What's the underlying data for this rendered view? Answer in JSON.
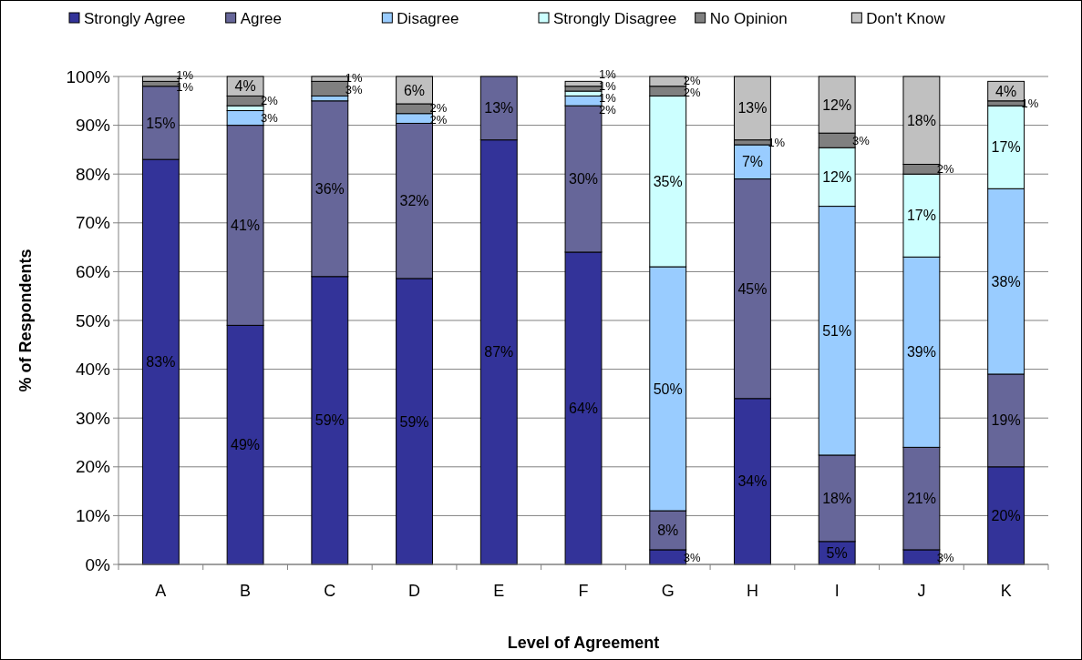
{
  "chart_data": {
    "type": "bar",
    "stacked": true,
    "xlabel": "Level of Agreement",
    "ylabel": "% of Respondents",
    "categories": [
      "A",
      "B",
      "C",
      "D",
      "E",
      "F",
      "G",
      "H",
      "I",
      "J",
      "K"
    ],
    "series": [
      {
        "name": "Strongly Agree",
        "color": "#333399",
        "values": [
          83,
          49,
          59,
          58.6,
          87,
          64,
          3,
          34,
          4.7,
          3,
          20
        ],
        "value_labels": [
          "83%",
          "49%",
          "59%",
          "59%",
          "87%",
          "64%",
          "3%",
          "34%",
          "5%",
          "3%",
          "20%"
        ]
      },
      {
        "name": "Agree",
        "color": "#666699",
        "values": [
          15,
          41,
          36,
          31.8,
          13,
          30,
          8,
          45,
          17.7,
          21,
          19
        ],
        "value_labels": [
          "15%",
          "41%",
          "36%",
          "32%",
          "13%",
          "30%",
          "8%",
          "45%",
          "18%",
          "21%",
          "19%"
        ]
      },
      {
        "name": "Disagree",
        "color": "#99ccff",
        "values": [
          0,
          3,
          1,
          2,
          0,
          2,
          50,
          7,
          51,
          39,
          38
        ],
        "value_labels": [
          null,
          "3%",
          null,
          "2%",
          null,
          "2%",
          "50%",
          "7%",
          "51%",
          "39%",
          "38%"
        ]
      },
      {
        "name": "Strongly Disagree",
        "color": "#ccffff",
        "values": [
          0,
          1,
          0,
          0,
          0,
          1,
          35,
          0,
          12,
          17,
          17
        ],
        "value_labels": [
          null,
          null,
          null,
          null,
          null,
          "1%",
          "35%",
          null,
          "12%",
          "17%",
          "17%"
        ]
      },
      {
        "name": "No Opinion",
        "color": "#808080",
        "values": [
          1,
          2,
          3,
          2,
          0,
          1,
          2,
          1,
          3,
          2,
          1
        ],
        "value_labels": [
          "1%",
          "2%",
          "3%",
          "2%",
          null,
          "1%",
          "2%",
          "1%",
          "3%",
          "2%",
          "1%"
        ]
      },
      {
        "name": "Don't Know",
        "color": "#c0c0c0",
        "values": [
          1,
          4,
          1,
          5.6,
          0,
          1,
          2,
          13,
          11.6,
          18,
          4
        ],
        "value_labels": [
          "1%",
          "4%",
          "1%",
          "6%",
          null,
          "1%",
          "2%",
          "13%",
          "12%",
          "18%",
          "4%"
        ]
      }
    ],
    "ylim": [
      0,
      100
    ],
    "yticks": [
      {
        "value": 0,
        "label": "0%"
      },
      {
        "value": 10,
        "label": "10%"
      },
      {
        "value": 20,
        "label": "20%"
      },
      {
        "value": 30,
        "label": "30%"
      },
      {
        "value": 40,
        "label": "40%"
      },
      {
        "value": 50,
        "label": "50%"
      },
      {
        "value": 60,
        "label": "60%"
      },
      {
        "value": 70,
        "label": "70%"
      },
      {
        "value": 80,
        "label": "80%"
      },
      {
        "value": 90,
        "label": "90%"
      },
      {
        "value": 100,
        "label": "100%"
      }
    ],
    "grid": "y",
    "legend": "top"
  }
}
